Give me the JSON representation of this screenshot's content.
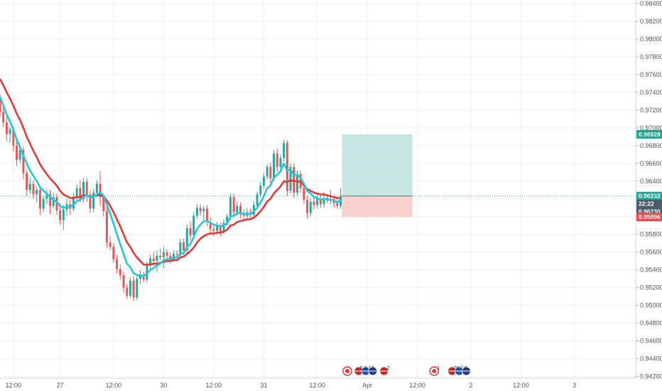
{
  "chart_data": {
    "type": "candlestick",
    "y_axis": {
      "ylim": [
        0.9418,
        0.9844
      ],
      "tick_labels": [
        "0.98400",
        "0.98200",
        "0.98000",
        "0.97800",
        "0.97600",
        "0.97400",
        "0.97200",
        "0.97000",
        "0.96800",
        "0.96600",
        "0.96400",
        "0.96200",
        "0.96000",
        "0.95800",
        "0.95600",
        "0.95400",
        "0.95200",
        "0.95000",
        "0.94800",
        "0.94600",
        "0.94400",
        "0.94200"
      ],
      "tick_values": [
        0.984,
        0.982,
        0.98,
        0.978,
        0.976,
        0.974,
        0.972,
        0.97,
        0.968,
        0.966,
        0.964,
        0.962,
        0.96,
        0.958,
        0.956,
        0.954,
        0.952,
        0.95,
        0.948,
        0.946,
        0.944,
        0.942
      ]
    },
    "x_axis": {
      "bar_range": [
        0,
        124
      ],
      "tick_labels": [
        "12:00",
        "27",
        "12:00",
        "30",
        "12:00",
        "31",
        "12:00",
        "Apr",
        "12:00",
        "2",
        "12:00",
        "3"
      ],
      "tick_bars": [
        4,
        18,
        34,
        49,
        64,
        79,
        95,
        110,
        125,
        141,
        156,
        172
      ]
    },
    "grid": true,
    "colors": {
      "up": "#26a69a",
      "down": "#ef5350",
      "ema_fast": "#e53935",
      "ema_slow": "#26c6da",
      "target_zone": "#b2dfdb",
      "stop_zone": "#f8c9c7",
      "target_label": "#17a68a",
      "stop_label": "#e84b4b",
      "current_label": "#26a69a",
      "countdown_label": "#4d5c6b"
    },
    "ohlc": [
      [
        0.9733,
        0.9738,
        0.9712,
        0.9718
      ],
      [
        0.9718,
        0.9726,
        0.9701,
        0.9706
      ],
      [
        0.9706,
        0.9712,
        0.9685,
        0.9693
      ],
      [
        0.9693,
        0.9701,
        0.9683,
        0.9698
      ],
      [
        0.9698,
        0.9702,
        0.9673,
        0.968
      ],
      [
        0.968,
        0.9688,
        0.9657,
        0.9664
      ],
      [
        0.9664,
        0.9679,
        0.966,
        0.9675
      ],
      [
        0.9675,
        0.9679,
        0.9642,
        0.9649
      ],
      [
        0.9649,
        0.9653,
        0.9623,
        0.963
      ],
      [
        0.963,
        0.9644,
        0.9626,
        0.9637
      ],
      [
        0.9637,
        0.9641,
        0.962,
        0.9625
      ],
      [
        0.9625,
        0.9634,
        0.9616,
        0.963
      ],
      [
        0.963,
        0.9634,
        0.9602,
        0.9609
      ],
      [
        0.9609,
        0.9624,
        0.9605,
        0.962
      ],
      [
        0.962,
        0.963,
        0.9614,
        0.9625
      ],
      [
        0.9625,
        0.963,
        0.9603,
        0.9612
      ],
      [
        0.9612,
        0.9627,
        0.9609,
        0.9622
      ],
      [
        0.9622,
        0.9626,
        0.9602,
        0.9607
      ],
      [
        0.9607,
        0.9615,
        0.9591,
        0.9596
      ],
      [
        0.9596,
        0.9613,
        0.9585,
        0.9608
      ],
      [
        0.9608,
        0.962,
        0.9601,
        0.9614
      ],
      [
        0.9614,
        0.9619,
        0.9602,
        0.9609
      ],
      [
        0.9609,
        0.9627,
        0.9606,
        0.9622
      ],
      [
        0.9622,
        0.9636,
        0.9618,
        0.9632
      ],
      [
        0.9632,
        0.9641,
        0.9616,
        0.962
      ],
      [
        0.962,
        0.9644,
        0.9616,
        0.9639
      ],
      [
        0.9639,
        0.9643,
        0.9617,
        0.9625
      ],
      [
        0.9625,
        0.9629,
        0.9604,
        0.9609
      ],
      [
        0.9609,
        0.9631,
        0.9605,
        0.9627
      ],
      [
        0.9627,
        0.9641,
        0.9622,
        0.9637
      ],
      [
        0.9637,
        0.9651,
        0.9612,
        0.9622
      ],
      [
        0.9622,
        0.9625,
        0.96,
        0.9606
      ],
      [
        0.9606,
        0.9611,
        0.9565,
        0.9571
      ],
      [
        0.9571,
        0.9578,
        0.9562,
        0.9566
      ],
      [
        0.9566,
        0.957,
        0.9548,
        0.9552
      ],
      [
        0.9552,
        0.9557,
        0.9536,
        0.9541
      ],
      [
        0.9541,
        0.9546,
        0.9529,
        0.9534
      ],
      [
        0.9534,
        0.9538,
        0.9514,
        0.952
      ],
      [
        0.952,
        0.9524,
        0.9507,
        0.9511
      ],
      [
        0.9511,
        0.9532,
        0.9508,
        0.9528
      ],
      [
        0.9528,
        0.9533,
        0.9505,
        0.9509
      ],
      [
        0.9509,
        0.9535,
        0.9506,
        0.953
      ],
      [
        0.953,
        0.954,
        0.9524,
        0.9534
      ],
      [
        0.9534,
        0.9538,
        0.9526,
        0.9529
      ],
      [
        0.9529,
        0.9549,
        0.9526,
        0.9545
      ],
      [
        0.9545,
        0.9557,
        0.9541,
        0.9553
      ],
      [
        0.9553,
        0.956,
        0.9545,
        0.955
      ],
      [
        0.955,
        0.9562,
        0.9538,
        0.9556
      ],
      [
        0.9556,
        0.9564,
        0.9551,
        0.9554
      ],
      [
        0.9554,
        0.9566,
        0.9542,
        0.956
      ],
      [
        0.956,
        0.9563,
        0.9552,
        0.9556
      ],
      [
        0.9556,
        0.956,
        0.9547,
        0.9552
      ],
      [
        0.9552,
        0.9562,
        0.9549,
        0.9558
      ],
      [
        0.9558,
        0.9562,
        0.9553,
        0.9557
      ],
      [
        0.9557,
        0.9575,
        0.9553,
        0.9571
      ],
      [
        0.9571,
        0.9575,
        0.9557,
        0.9562
      ],
      [
        0.9562,
        0.9591,
        0.9559,
        0.9587
      ],
      [
        0.9587,
        0.9595,
        0.9573,
        0.9579
      ],
      [
        0.9579,
        0.9605,
        0.9575,
        0.9601
      ],
      [
        0.9601,
        0.9614,
        0.9597,
        0.961
      ],
      [
        0.961,
        0.9614,
        0.9601,
        0.9606
      ],
      [
        0.9606,
        0.9612,
        0.9596,
        0.9609
      ],
      [
        0.9609,
        0.9613,
        0.9589,
        0.9594
      ],
      [
        0.9594,
        0.9599,
        0.9582,
        0.9586
      ],
      [
        0.9586,
        0.9591,
        0.9578,
        0.9584
      ],
      [
        0.9584,
        0.9594,
        0.958,
        0.959
      ],
      [
        0.959,
        0.9593,
        0.9578,
        0.9583
      ],
      [
        0.9583,
        0.9597,
        0.958,
        0.9593
      ],
      [
        0.9593,
        0.9603,
        0.959,
        0.96
      ],
      [
        0.96,
        0.9626,
        0.9596,
        0.9622
      ],
      [
        0.9622,
        0.9626,
        0.9599,
        0.9605
      ],
      [
        0.9605,
        0.9617,
        0.9601,
        0.9612
      ],
      [
        0.9612,
        0.9616,
        0.9598,
        0.9603
      ],
      [
        0.9603,
        0.9608,
        0.9596,
        0.9601
      ],
      [
        0.9601,
        0.961,
        0.9597,
        0.9605
      ],
      [
        0.9605,
        0.9609,
        0.9598,
        0.9602
      ],
      [
        0.9602,
        0.9617,
        0.9598,
        0.9613
      ],
      [
        0.9613,
        0.9628,
        0.9609,
        0.9625
      ],
      [
        0.9625,
        0.9639,
        0.9622,
        0.9635
      ],
      [
        0.9635,
        0.9649,
        0.9631,
        0.9645
      ],
      [
        0.9645,
        0.9659,
        0.9642,
        0.9656
      ],
      [
        0.9656,
        0.9661,
        0.9637,
        0.9643
      ],
      [
        0.9643,
        0.9675,
        0.964,
        0.9671
      ],
      [
        0.9671,
        0.9677,
        0.965,
        0.9656
      ],
      [
        0.9656,
        0.967,
        0.9652,
        0.9666
      ],
      [
        0.9666,
        0.9687,
        0.9662,
        0.9683
      ],
      [
        0.9683,
        0.9686,
        0.9623,
        0.9629
      ],
      [
        0.9629,
        0.966,
        0.9626,
        0.9656
      ],
      [
        0.9656,
        0.966,
        0.9621,
        0.9627
      ],
      [
        0.9627,
        0.9652,
        0.9624,
        0.9648
      ],
      [
        0.9648,
        0.9652,
        0.9627,
        0.9632
      ],
      [
        0.9632,
        0.9636,
        0.9615,
        0.9619
      ],
      [
        0.9619,
        0.9624,
        0.9598,
        0.9604
      ],
      [
        0.9604,
        0.9621,
        0.96,
        0.9617
      ],
      [
        0.9617,
        0.9622,
        0.9608,
        0.9613
      ],
      [
        0.9613,
        0.9625,
        0.9609,
        0.962
      ],
      [
        0.962,
        0.9624,
        0.961,
        0.9614
      ],
      [
        0.9614,
        0.9628,
        0.961,
        0.9621
      ],
      [
        0.9621,
        0.9625,
        0.9615,
        0.9618
      ],
      [
        0.9618,
        0.963,
        0.9614,
        0.962
      ],
      [
        0.962,
        0.9624,
        0.961,
        0.9615
      ],
      [
        0.9615,
        0.9621,
        0.9609,
        0.9612
      ],
      [
        0.9612,
        0.9632,
        0.9609,
        0.9623
      ]
    ],
    "indicators": [
      {
        "values": [
          0.9735,
          0.9725,
          0.9715,
          0.9707,
          0.9698,
          0.9687,
          0.9678,
          0.9669,
          0.966,
          0.9652,
          0.9646,
          0.964,
          0.9633,
          0.9629,
          0.9626,
          0.9622,
          0.9619,
          0.9617,
          0.9612,
          0.961,
          0.9611,
          0.9611,
          0.9613,
          0.9617,
          0.9619,
          0.9622,
          0.9624,
          0.9622,
          0.9622,
          0.9625,
          0.9627,
          0.9624,
          0.9613,
          0.9603,
          0.9592,
          0.958,
          0.9569,
          0.9558,
          0.9547,
          0.9543,
          0.9536,
          0.9534,
          0.9534,
          0.9533,
          0.9536,
          0.954,
          0.9542,
          0.9545,
          0.9547,
          0.9551,
          0.9552,
          0.9552,
          0.9554,
          0.9554,
          0.9558,
          0.9559,
          0.9566,
          0.9569,
          0.9577,
          0.9586,
          0.9591,
          0.9595,
          0.9595,
          0.9593,
          0.9591,
          0.959,
          0.9589,
          0.959,
          0.9592,
          0.96,
          0.9601,
          0.9604,
          0.9604,
          0.9603,
          0.9603,
          0.9603,
          0.9606,
          0.961,
          0.9616,
          0.9623,
          0.9632,
          0.9635,
          0.9644,
          0.9647,
          0.9651,
          0.966,
          0.9652,
          0.9653,
          0.9647,
          0.9647,
          0.9644,
          0.9637,
          0.9629,
          0.9626,
          0.9622,
          0.9621,
          0.9619,
          0.962,
          0.9619,
          0.9619,
          0.9618,
          0.9616,
          0.9618
        ]
      },
      {
        "values": [
          0.9755,
          0.9748,
          0.974,
          0.9733,
          0.9725,
          0.9716,
          0.9709,
          0.97,
          0.969,
          0.9682,
          0.9674,
          0.9667,
          0.9659,
          0.9653,
          0.9648,
          0.9643,
          0.9639,
          0.9635,
          0.9629,
          0.9625,
          0.9623,
          0.9621,
          0.9621,
          0.9622,
          0.9622,
          0.9624,
          0.9624,
          0.9622,
          0.9623,
          0.9624,
          0.9624,
          0.9623,
          0.9618,
          0.9612,
          0.9605,
          0.9597,
          0.9589,
          0.958,
          0.9571,
          0.9566,
          0.9559,
          0.9554,
          0.955,
          0.9546,
          0.9546,
          0.9546,
          0.9547,
          0.9547,
          0.9548,
          0.9549,
          0.955,
          0.955,
          0.9551,
          0.9551,
          0.9554,
          0.9555,
          0.9558,
          0.9561,
          0.9565,
          0.9571,
          0.9575,
          0.9578,
          0.958,
          0.9581,
          0.9581,
          0.9582,
          0.9582,
          0.9583,
          0.9585,
          0.959,
          0.9591,
          0.9594,
          0.9595,
          0.9596,
          0.9597,
          0.9597,
          0.9599,
          0.9602,
          0.9606,
          0.9611,
          0.9617,
          0.962,
          0.9626,
          0.963,
          0.9634,
          0.964,
          0.9639,
          0.9641,
          0.964,
          0.964,
          0.9639,
          0.9635,
          0.9631,
          0.9629,
          0.9627,
          0.9626,
          0.9625,
          0.9625,
          0.9624,
          0.9623,
          0.9622,
          0.9621,
          0.9621
        ]
      }
    ],
    "position": {
      "target": 0.96928,
      "entry": 0.96232,
      "stop": 0.95996,
      "start_bar": 102.4,
      "end_bar": 123.5
    },
    "price_labels": [
      {
        "value": 0.96928,
        "text": "0.96928",
        "role": "target"
      },
      {
        "value": 0.96232,
        "text": "0.96232",
        "role": "entry"
      },
      {
        "value": 0.96146,
        "text": "22:22",
        "role": "countdown"
      },
      {
        "value": 0.9623,
        "text": "0.96230",
        "role": "current"
      },
      {
        "value": 0.95996,
        "text": "0.95996",
        "role": "stop"
      }
    ],
    "events": [
      {
        "bar": 104,
        "icons": [
          "red-circle-icon"
        ],
        "text": ""
      },
      {
        "bar": 109.5,
        "icons": [
          "us-flag-icon",
          "eu-flag-icon",
          "uk-flag-icon"
        ],
        "text": "5  3  17"
      },
      {
        "bar": 115,
        "icons": [
          "us-flag-icon"
        ],
        "text": "2"
      },
      {
        "bar": 130,
        "icons": [
          "red-circle-icon"
        ],
        "text": "1"
      },
      {
        "bar": 137.5,
        "icons": [
          "us-flag-icon",
          "eu-flag-icon",
          "uk-flag-icon"
        ],
        "text": "29  2  8"
      }
    ]
  }
}
